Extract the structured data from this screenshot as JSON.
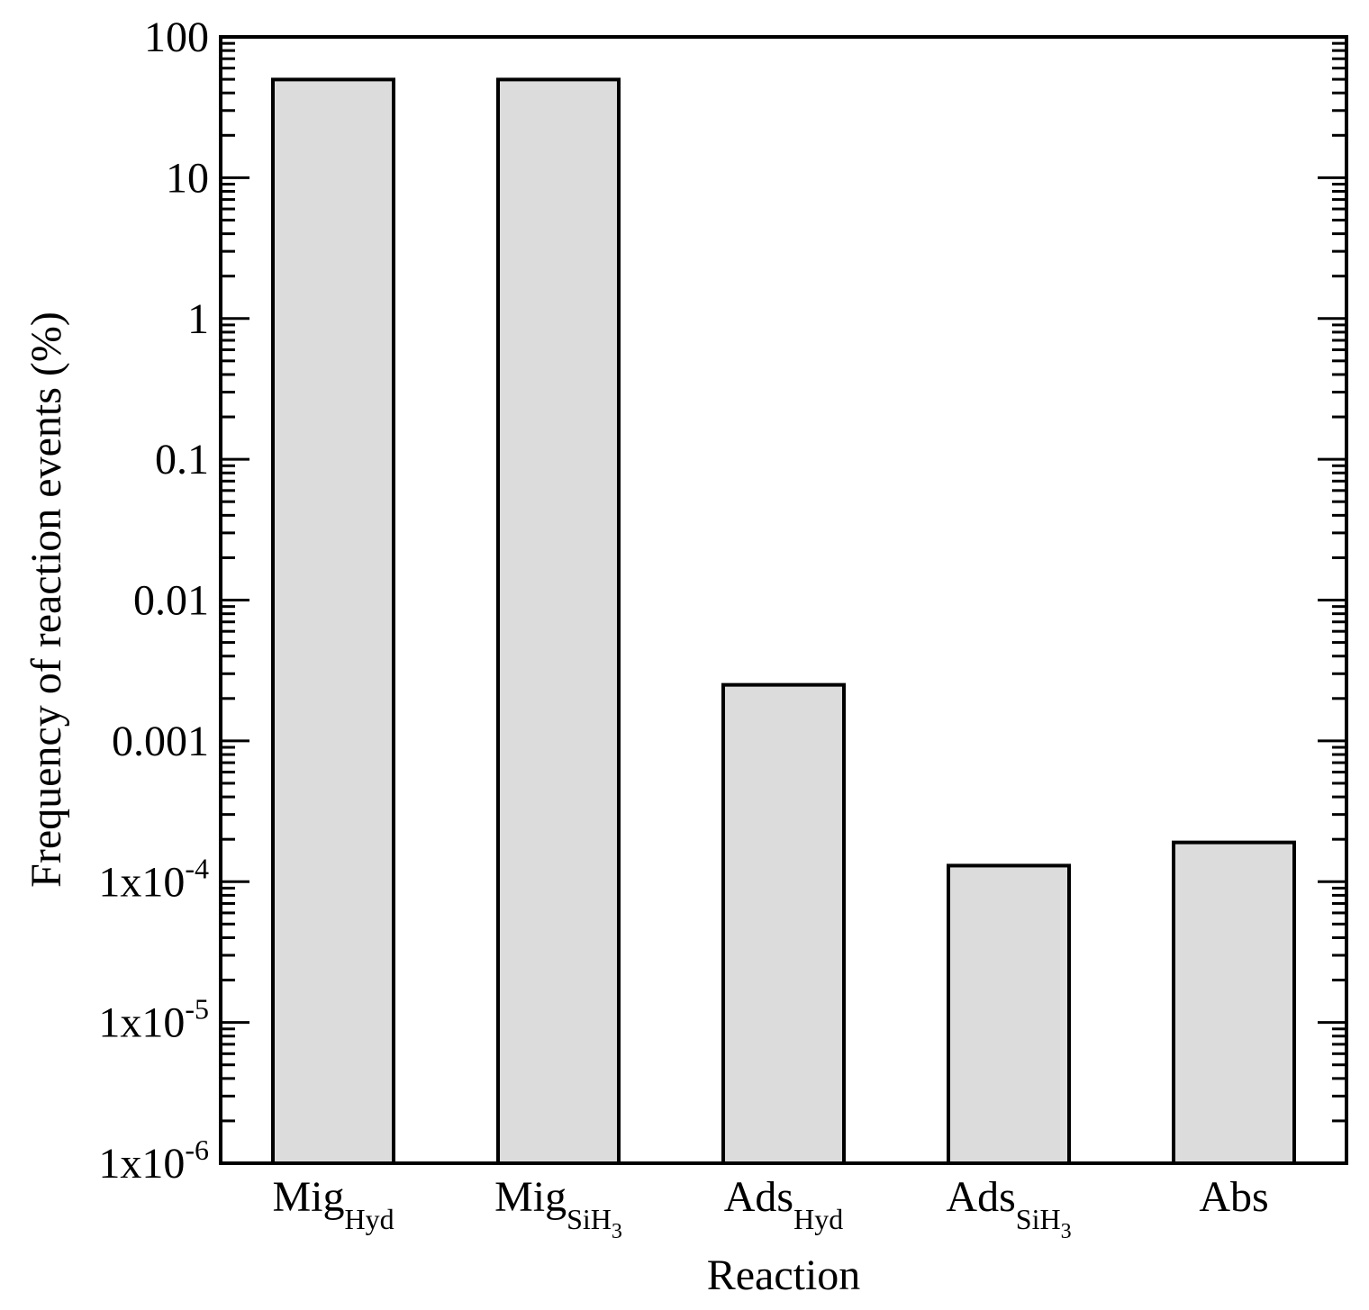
{
  "chart_data": {
    "type": "bar",
    "xlabel": "Reaction",
    "ylabel": "Frequency of reaction events (%)",
    "yscale": "log",
    "ylim": [
      1e-06,
      100
    ],
    "grid": false,
    "bar_color": "#dcdcdc",
    "edge_color": "#000000",
    "categories": [
      {
        "base": "Mig",
        "sub": "Hyd",
        "subsub": ""
      },
      {
        "base": "Mig",
        "sub": "SiH",
        "subsub": "3"
      },
      {
        "base": "Ads",
        "sub": "Hyd",
        "subsub": ""
      },
      {
        "base": "Ads",
        "sub": "SiH",
        "subsub": "3"
      },
      {
        "base": "Abs",
        "sub": "",
        "subsub": ""
      }
    ],
    "values": [
      49.8,
      49.8,
      0.0025,
      0.00013,
      0.00019
    ],
    "yticks": [
      {
        "value": 100,
        "base": "100",
        "exp": ""
      },
      {
        "value": 10,
        "base": "10",
        "exp": ""
      },
      {
        "value": 1,
        "base": "1",
        "exp": ""
      },
      {
        "value": 0.1,
        "base": "0.1",
        "exp": ""
      },
      {
        "value": 0.01,
        "base": "0.01",
        "exp": ""
      },
      {
        "value": 0.001,
        "base": "0.001",
        "exp": ""
      },
      {
        "value": 0.0001,
        "base": "1x10",
        "exp": "-4"
      },
      {
        "value": 1e-05,
        "base": "1x10",
        "exp": "-5"
      },
      {
        "value": 1e-06,
        "base": "1x10",
        "exp": "-6"
      }
    ]
  }
}
